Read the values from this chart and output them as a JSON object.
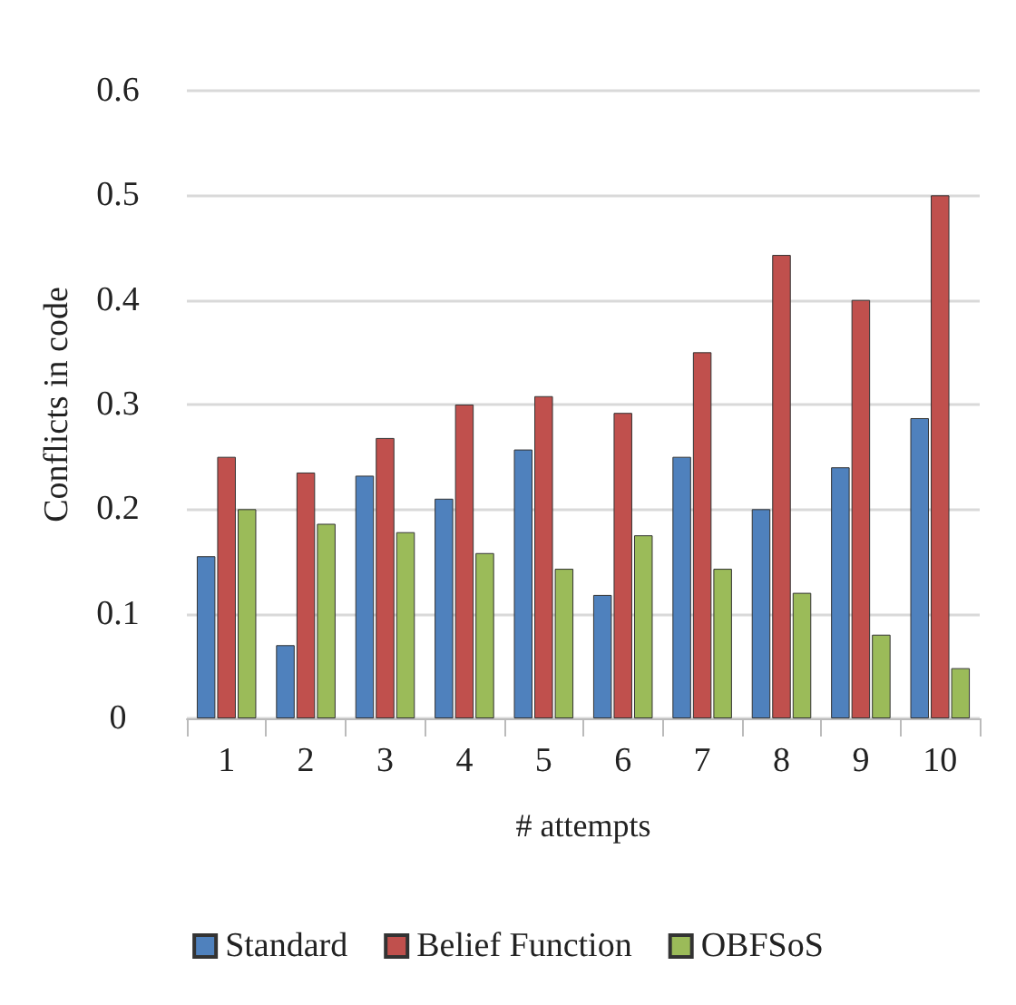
{
  "chart_data": {
    "type": "bar",
    "xlabel": "# attempts",
    "ylabel": "Conflicts in code",
    "categories": [
      "1",
      "2",
      "3",
      "4",
      "5",
      "6",
      "7",
      "8",
      "9",
      "10"
    ],
    "series": [
      {
        "name": "Standard",
        "color": "#4f81bd",
        "values": [
          0.155,
          0.07,
          0.232,
          0.21,
          0.257,
          0.118,
          0.25,
          0.2,
          0.24,
          0.287
        ]
      },
      {
        "name": "Belief Function",
        "color": "#c0504d",
        "values": [
          0.25,
          0.235,
          0.268,
          0.3,
          0.308,
          0.292,
          0.35,
          0.443,
          0.4,
          0.5
        ]
      },
      {
        "name": "OBFSoS",
        "color": "#9bbb59",
        "values": [
          0.2,
          0.186,
          0.178,
          0.158,
          0.143,
          0.175,
          0.143,
          0.12,
          0.08,
          0.048
        ]
      }
    ],
    "ylim": [
      0,
      0.6
    ],
    "yticks": [
      0,
      0.1,
      0.2,
      0.3,
      0.4,
      0.5,
      0.6
    ],
    "grid": "y",
    "legend": "bottom"
  }
}
